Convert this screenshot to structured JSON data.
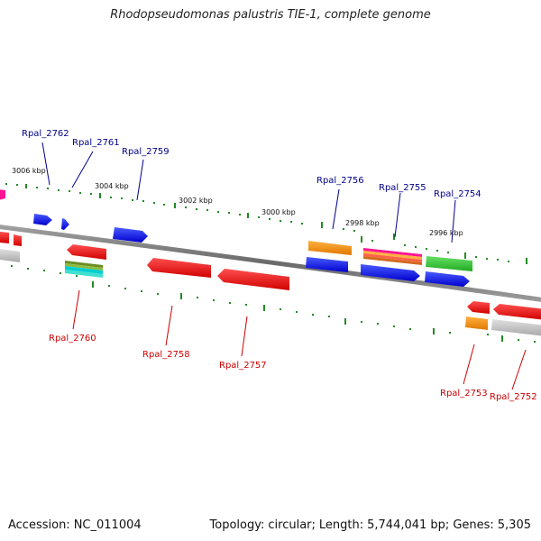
{
  "title": "Rhodopseudomonas palustris TIE-1, complete genome",
  "accession": {
    "label": "Accession:",
    "value": "NC_011004"
  },
  "summary": {
    "topology_label": "Topology:",
    "topology": "circular;",
    "length_label": "Length:",
    "length": "5,744,041 bp;",
    "genes_label": "Genes:",
    "genes": "5,305"
  },
  "scale_labels": [
    "3006 kbp",
    "3004 kbp",
    "3002 kbp",
    "3000 kbp",
    "2998 kbp",
    "2996 kbp"
  ],
  "genes_upper_labels": [
    "Rpal_2762",
    "Rpal_2761",
    "Rpal_2759",
    "Rpal_2756",
    "Rpal_2755",
    "Rpal_2754"
  ],
  "genes_lower_labels": [
    "Rpal_2760",
    "Rpal_2758",
    "Rpal_2757",
    "Rpal_2753",
    "Rpal_2752"
  ],
  "colors": {
    "upper_label": "#00008b",
    "lower_label": "#cc0000",
    "tick": "#228b22",
    "backbone": "#7a7a7a",
    "blue": "#0000ee",
    "red": "#ee0000",
    "orange": "#ff8c00",
    "green": "#32cd32",
    "magenta": "#ff1493",
    "gray": "#bdbdbd",
    "cyan": "#00ced1",
    "olive": "#6b8e23"
  }
}
